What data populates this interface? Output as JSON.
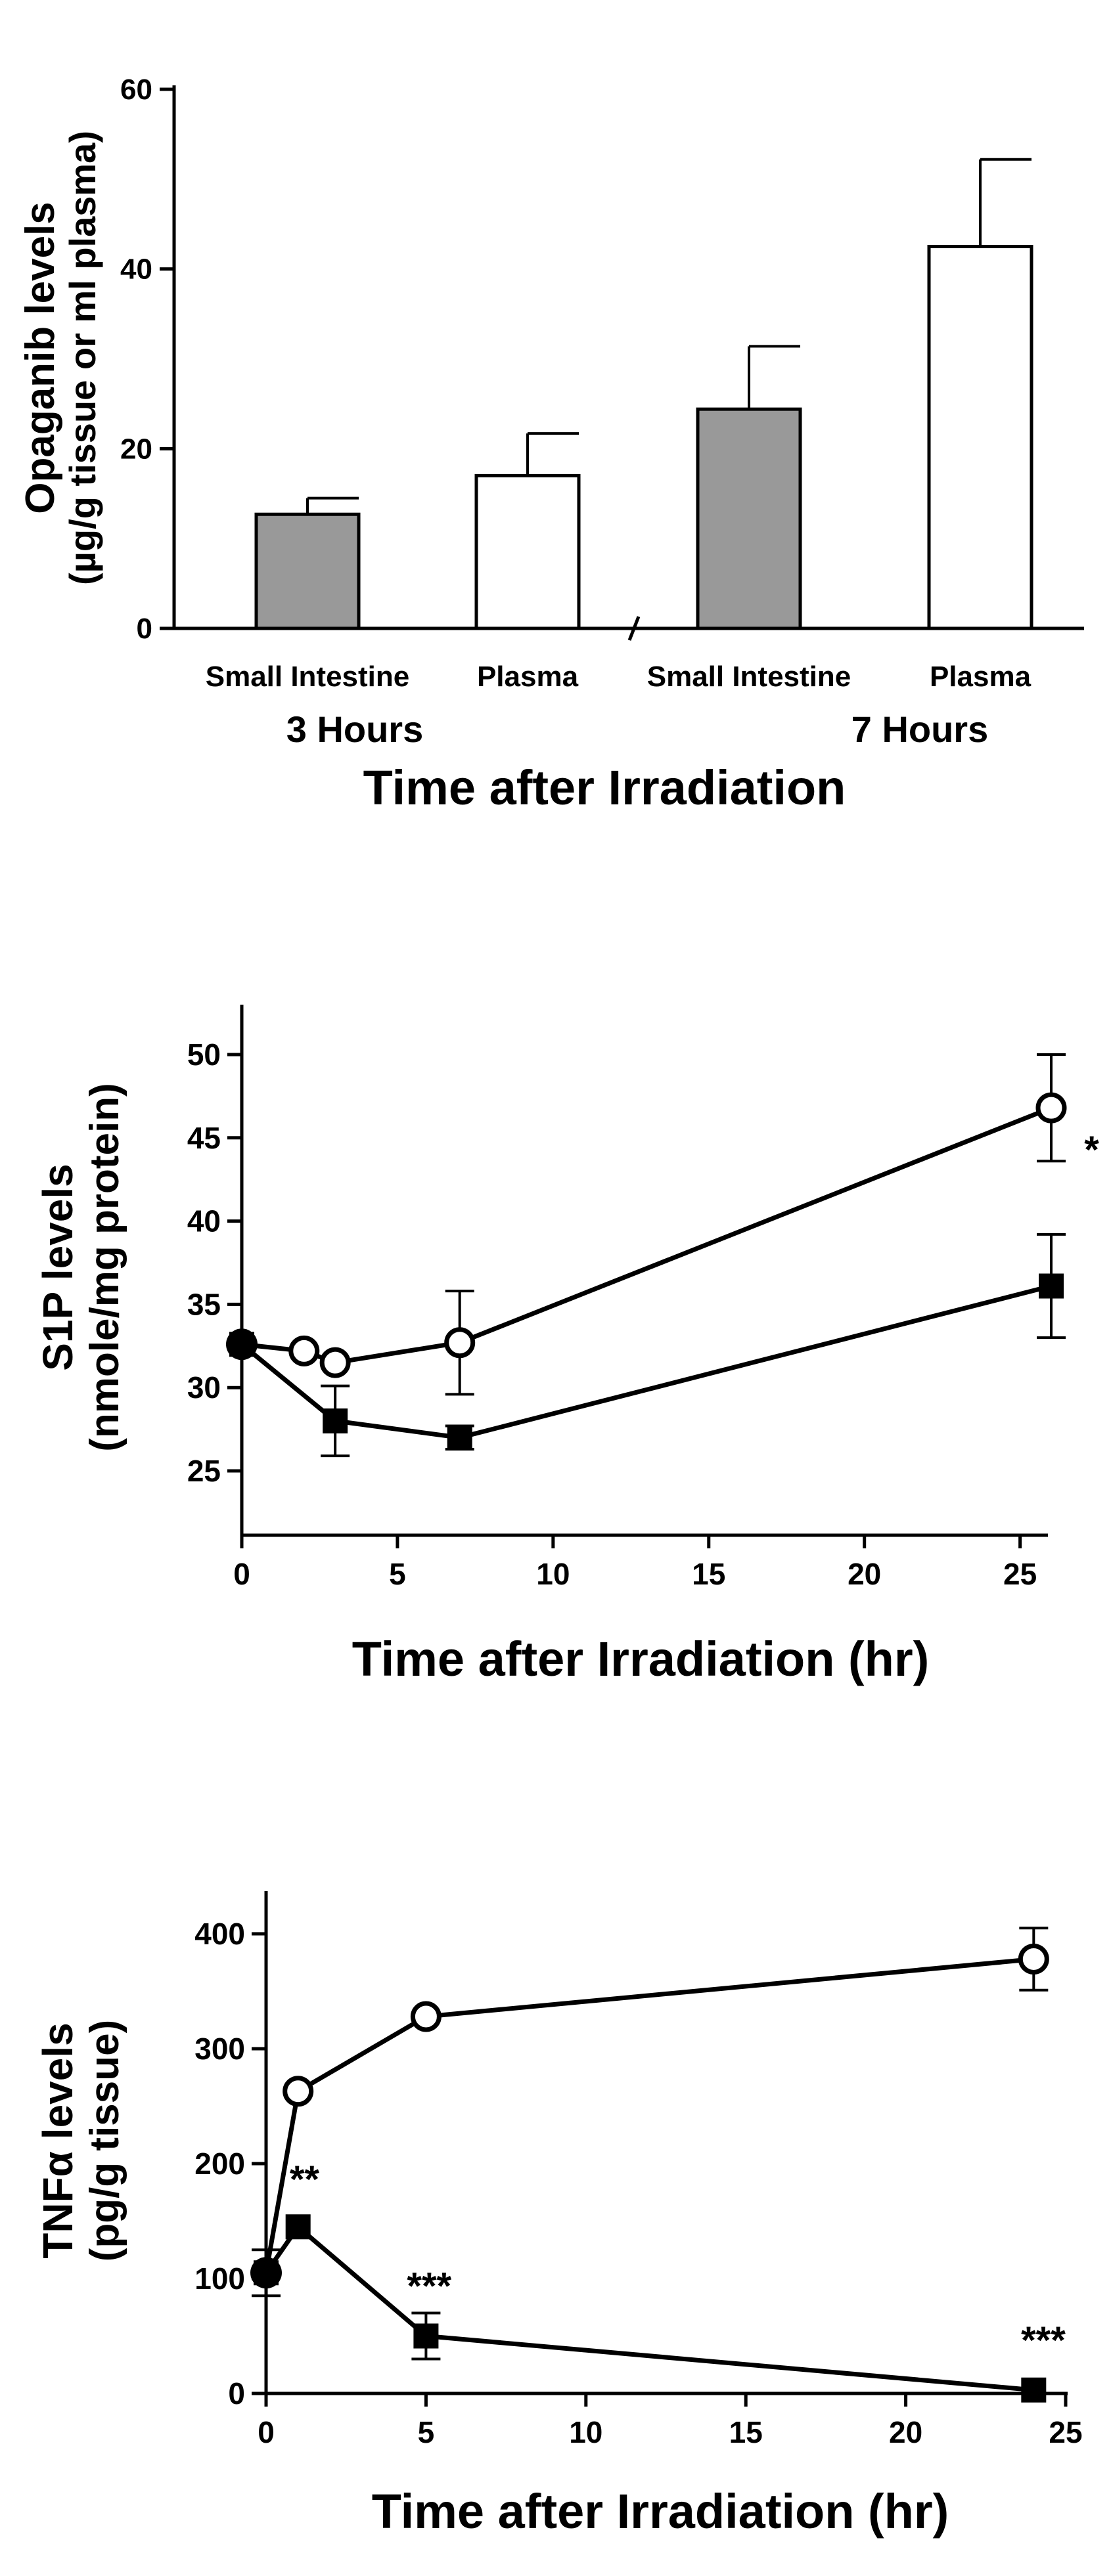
{
  "chart_data": [
    {
      "type": "bar",
      "ylabel_line1": "Opaganib levels",
      "ylabel_line2": "(µg/g tissue or ml plasma)",
      "xlabel": "Time after Irradiation",
      "ylim": [
        0,
        60
      ],
      "yticks": [
        0,
        20,
        40,
        60
      ],
      "groups": [
        "3 Hours",
        "7 Hours"
      ],
      "categories": [
        "Small Intestine",
        "Plasma",
        "Small Intestine",
        "Plasma"
      ],
      "values": [
        12.7,
        17.0,
        24.4,
        42.5
      ],
      "errors": [
        1.8,
        4.7,
        7.0,
        9.7
      ],
      "fill_colors": [
        "#999999",
        "#ffffff",
        "#999999",
        "#ffffff"
      ]
    },
    {
      "type": "line",
      "ylabel_line1": "S1P levels",
      "ylabel_line2": "(nmole/mg protein)",
      "xlabel": "Time after Irradiation (hr)",
      "xlim": [
        0,
        26
      ],
      "ylim": [
        21,
        52
      ],
      "xticks": [
        0,
        5,
        10,
        15,
        20,
        25
      ],
      "yticks": [
        25,
        30,
        35,
        40,
        45,
        50
      ],
      "series": [
        {
          "name": "open circle",
          "marker": "open-circle",
          "x": [
            0,
            2,
            3,
            7,
            26
          ],
          "y": [
            32.6,
            32.2,
            31.5,
            32.7,
            46.8
          ],
          "err": [
            0,
            0,
            0,
            3.1,
            3.2
          ]
        },
        {
          "name": "filled square",
          "marker": "filled-square",
          "x": [
            0,
            3,
            7,
            26
          ],
          "y": [
            32.6,
            28.0,
            27.0,
            36.1
          ],
          "err": [
            0,
            2.1,
            0.7,
            3.1
          ]
        }
      ],
      "annotations": [
        {
          "text": "*",
          "x": 27.3,
          "y": 43.5
        }
      ]
    },
    {
      "type": "line",
      "ylabel_line1": "TNFα levels",
      "ylabel_line2": "(pg/g tissue)",
      "xlabel": "Time after Irradiation (hr)",
      "xlim": [
        0,
        25
      ],
      "ylim": [
        0,
        450
      ],
      "xticks": [
        0,
        5,
        10,
        15,
        20,
        25
      ],
      "yticks": [
        0,
        100,
        200,
        300,
        400
      ],
      "series": [
        {
          "name": "open circle",
          "marker": "open-circle",
          "x": [
            0,
            1,
            5,
            24
          ],
          "y": [
            105,
            263,
            328,
            378
          ],
          "err": [
            0,
            0,
            0,
            27
          ]
        },
        {
          "name": "filled square",
          "marker": "filled-square",
          "x": [
            0,
            1,
            5,
            24
          ],
          "y": [
            105,
            145,
            50,
            3
          ],
          "err": [
            20,
            0,
            20,
            0
          ]
        }
      ],
      "annotations": [
        {
          "text": "**",
          "x": 1.2,
          "y": 175
        },
        {
          "text": "***",
          "x": 5.1,
          "y": 82
        },
        {
          "text": "***",
          "x": 24.3,
          "y": 35
        }
      ]
    }
  ]
}
